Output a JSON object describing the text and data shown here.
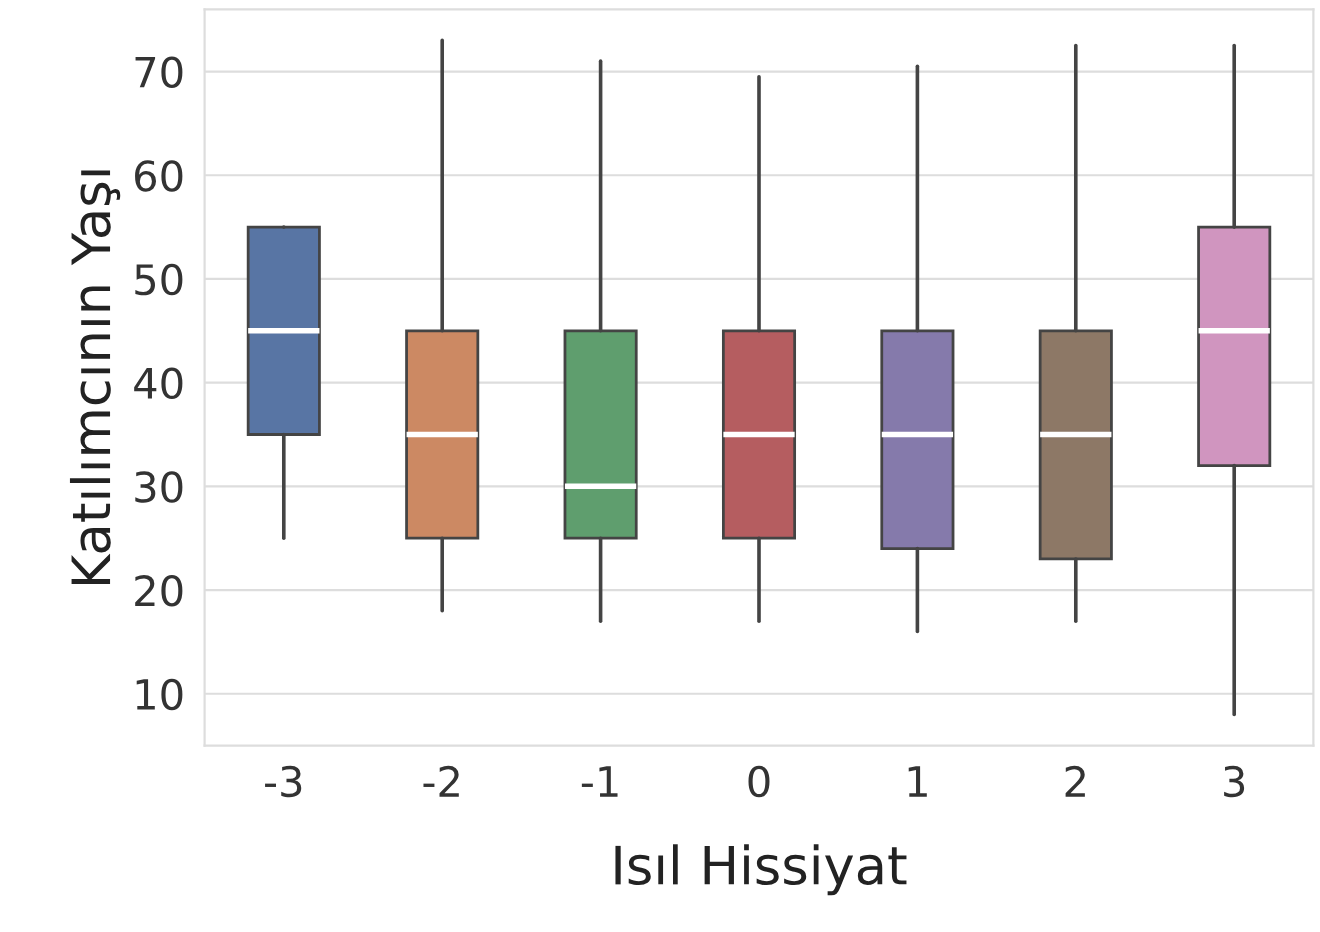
{
  "chart_data": {
    "type": "box",
    "xlabel": "Isıl Hissiyat",
    "ylabel": "Katılımcının Yaşı",
    "categories": [
      "-3",
      "-2",
      "-1",
      "0",
      "1",
      "2",
      "3"
    ],
    "colors": [
      "#5875a4",
      "#cc8963",
      "#5f9e6e",
      "#b55d60",
      "#857aab",
      "#8d7866",
      "#d095bf"
    ],
    "boxes": [
      {
        "low": 25,
        "q1": 35,
        "median": 45,
        "q3": 55,
        "high": 55
      },
      {
        "low": 18,
        "q1": 25,
        "median": 35,
        "q3": 45,
        "high": 73
      },
      {
        "low": 17,
        "q1": 25,
        "median": 30,
        "q3": 45,
        "high": 71
      },
      {
        "low": 17,
        "q1": 25,
        "median": 35,
        "q3": 45,
        "high": 69.5
      },
      {
        "low": 16,
        "q1": 24,
        "median": 35,
        "q3": 45,
        "high": 70.5
      },
      {
        "low": 17,
        "q1": 23,
        "median": 35,
        "q3": 45,
        "high": 72.5
      },
      {
        "low": 8,
        "q1": 32,
        "median": 45,
        "q3": 55,
        "high": 72.5
      }
    ],
    "ylim": [
      5,
      76
    ],
    "yticks": [
      10,
      20,
      30,
      40,
      50,
      60,
      70
    ],
    "grid": "y"
  }
}
